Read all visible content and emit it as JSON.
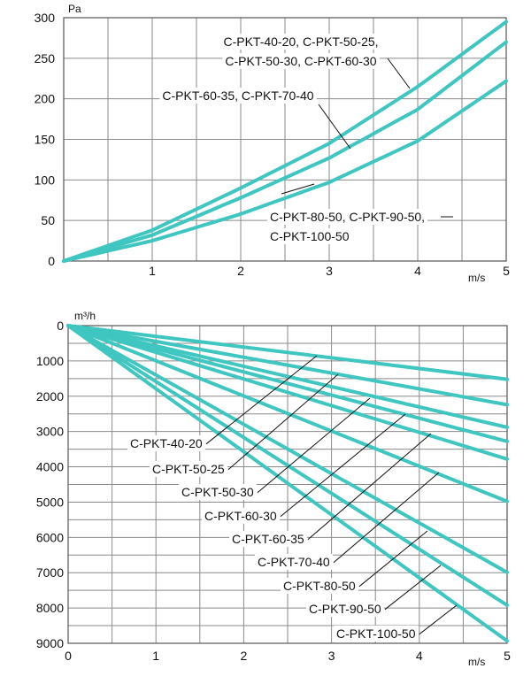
{
  "colors": {
    "curve": "#3fc6c0",
    "grid": "#8a8a8a",
    "frame": "#555555",
    "leader": "#111111"
  },
  "chart_data": [
    {
      "type": "line",
      "title": "",
      "xlabel": "m/s",
      "ylabel": "Pa",
      "xlim": [
        0,
        5
      ],
      "ylim": [
        0,
        300
      ],
      "x_ticks": [
        "1",
        "2",
        "3",
        "4",
        "5"
      ],
      "y_ticks": [
        "0",
        "50",
        "100",
        "150",
        "200",
        "250",
        "300"
      ],
      "grid": true,
      "series": [
        {
          "name": "C-PKT-40-20, C-PKT-50-25, C-PKT-50-30, C-PKT-60-30",
          "x": [
            0,
            1,
            2,
            3,
            4,
            5
          ],
          "y": [
            0,
            38,
            90,
            145,
            215,
            295
          ]
        },
        {
          "name": "C-PKT-60-35, C-PKT-70-40",
          "x": [
            0,
            1,
            2,
            3,
            4,
            5
          ],
          "y": [
            0,
            32,
            78,
            127,
            187,
            270
          ]
        },
        {
          "name": "C-PKT-80-50, C-PKT-90-50, C-PKT-100-50",
          "x": [
            0,
            1,
            2,
            3,
            4,
            5
          ],
          "y": [
            0,
            25,
            58,
            97,
            148,
            222
          ]
        }
      ],
      "annotations": [
        {
          "lines": [
            "C-PKT-40-20, C-PKT-50-25,",
            "C-PKT-50-30, C-PKT-60-30"
          ]
        },
        {
          "lines": [
            "C-PKT-60-35, C-PKT-70-40"
          ]
        },
        {
          "lines": [
            "C-PKT-80-50, C-PKT-90-50,",
            "C-PKT-100-50"
          ]
        }
      ]
    },
    {
      "type": "line",
      "title": "",
      "xlabel": "m/s",
      "ylabel": "m³/h",
      "xlim": [
        0,
        5
      ],
      "ylim": [
        9000,
        0
      ],
      "x_ticks": [
        "0",
        "1",
        "2",
        "3",
        "4",
        "5"
      ],
      "y_ticks": [
        "0",
        "1000",
        "2000",
        "3000",
        "4000",
        "5000",
        "6000",
        "7000",
        "8000",
        "9000"
      ],
      "grid": true,
      "series": [
        {
          "name": "C-PKT-40-20",
          "x": [
            0,
            5
          ],
          "y": [
            0,
            1520
          ]
        },
        {
          "name": "C-PKT-50-25",
          "x": [
            0,
            5
          ],
          "y": [
            0,
            2240
          ]
        },
        {
          "name": "C-PKT-50-30",
          "x": [
            0,
            5
          ],
          "y": [
            0,
            2880
          ]
        },
        {
          "name": "C-PKT-60-30",
          "x": [
            0,
            5
          ],
          "y": [
            0,
            3280
          ]
        },
        {
          "name": "C-PKT-60-35",
          "x": [
            0,
            5
          ],
          "y": [
            0,
            3780
          ]
        },
        {
          "name": "C-PKT-70-40",
          "x": [
            0,
            5
          ],
          "y": [
            0,
            4980
          ]
        },
        {
          "name": "C-PKT-80-50",
          "x": [
            0,
            5
          ],
          "y": [
            0,
            6990
          ]
        },
        {
          "name": "C-PKT-90-50",
          "x": [
            0,
            5
          ],
          "y": [
            0,
            7920
          ]
        },
        {
          "name": "C-PKT-100-50",
          "x": [
            0,
            5
          ],
          "y": [
            0,
            8930
          ]
        }
      ]
    }
  ]
}
